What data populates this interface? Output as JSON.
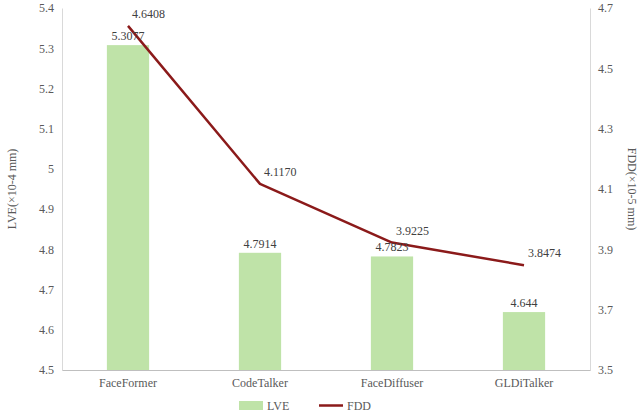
{
  "chart_data": {
    "type": "bar",
    "categories": [
      "FaceFormer",
      "CodeTalker",
      "FaceDiffuser",
      "GLDiTalker"
    ],
    "y_label": "LVE(×10-4 mm)",
    "y2_label": "FDD(×10-5 mm)",
    "ylim": [
      4.5,
      5.4
    ],
    "yticks": [
      4.5,
      4.6,
      4.7,
      4.8,
      4.9,
      5,
      5.1,
      5.2,
      5.3,
      5.4
    ],
    "y2lim": [
      3.5,
      4.7
    ],
    "y2ticks": [
      3.5,
      3.7,
      3.9,
      4.1,
      4.3,
      4.5,
      4.7
    ],
    "grid": false,
    "legend": "bottom",
    "data_labels": true,
    "series": [
      {
        "name": "LVE",
        "type": "bar",
        "color": "#bfe3a8",
        "values": [
          5.3077,
          4.7914,
          4.7823,
          4.644
        ]
      },
      {
        "name": "FDD",
        "type": "line",
        "axis": "y2",
        "color": "#8b1a1a",
        "values": [
          4.6408,
          4.117,
          3.9225,
          3.8474
        ],
        "value_labels": [
          "4.6408",
          "4.1170",
          "3.9225",
          "3.8474"
        ]
      }
    ]
  }
}
